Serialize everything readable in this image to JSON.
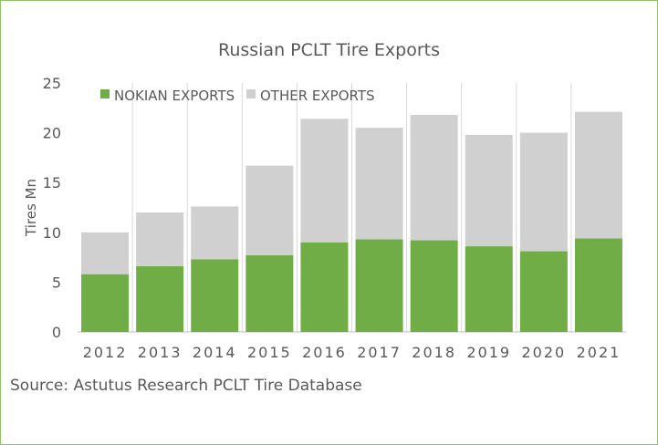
{
  "colors": {
    "border": "#8fc46a",
    "nokian": "#70ad47",
    "other": "#d0d0d0",
    "axis_text": "#595959",
    "grid": "#d9d9d9",
    "axis": "#bfbfbf"
  },
  "source": "Source: Astutus Research PCLT Tire Database",
  "chart_data": {
    "type": "bar",
    "stacked": true,
    "title": "Russian PCLT Tire Exports",
    "xlabel": "",
    "ylabel": "Tires Mn",
    "ylim": [
      0,
      25
    ],
    "yticks": [
      "0",
      "5",
      "10",
      "15",
      "20",
      "25"
    ],
    "grid": "vertical separators between categories",
    "legend_position": "top-left",
    "categories": [
      "2012",
      "2013",
      "2014",
      "2015",
      "2016",
      "2017",
      "2018",
      "2019",
      "2020",
      "2021"
    ],
    "series": [
      {
        "name": "NOKIAN EXPORTS",
        "values": [
          5.8,
          6.6,
          7.3,
          7.7,
          9.0,
          9.3,
          9.2,
          8.6,
          8.1,
          9.4
        ]
      },
      {
        "name": "OTHER EXPORTS",
        "values": [
          4.2,
          5.4,
          5.3,
          9.0,
          12.4,
          11.2,
          12.6,
          11.2,
          11.9,
          12.7
        ]
      }
    ]
  }
}
